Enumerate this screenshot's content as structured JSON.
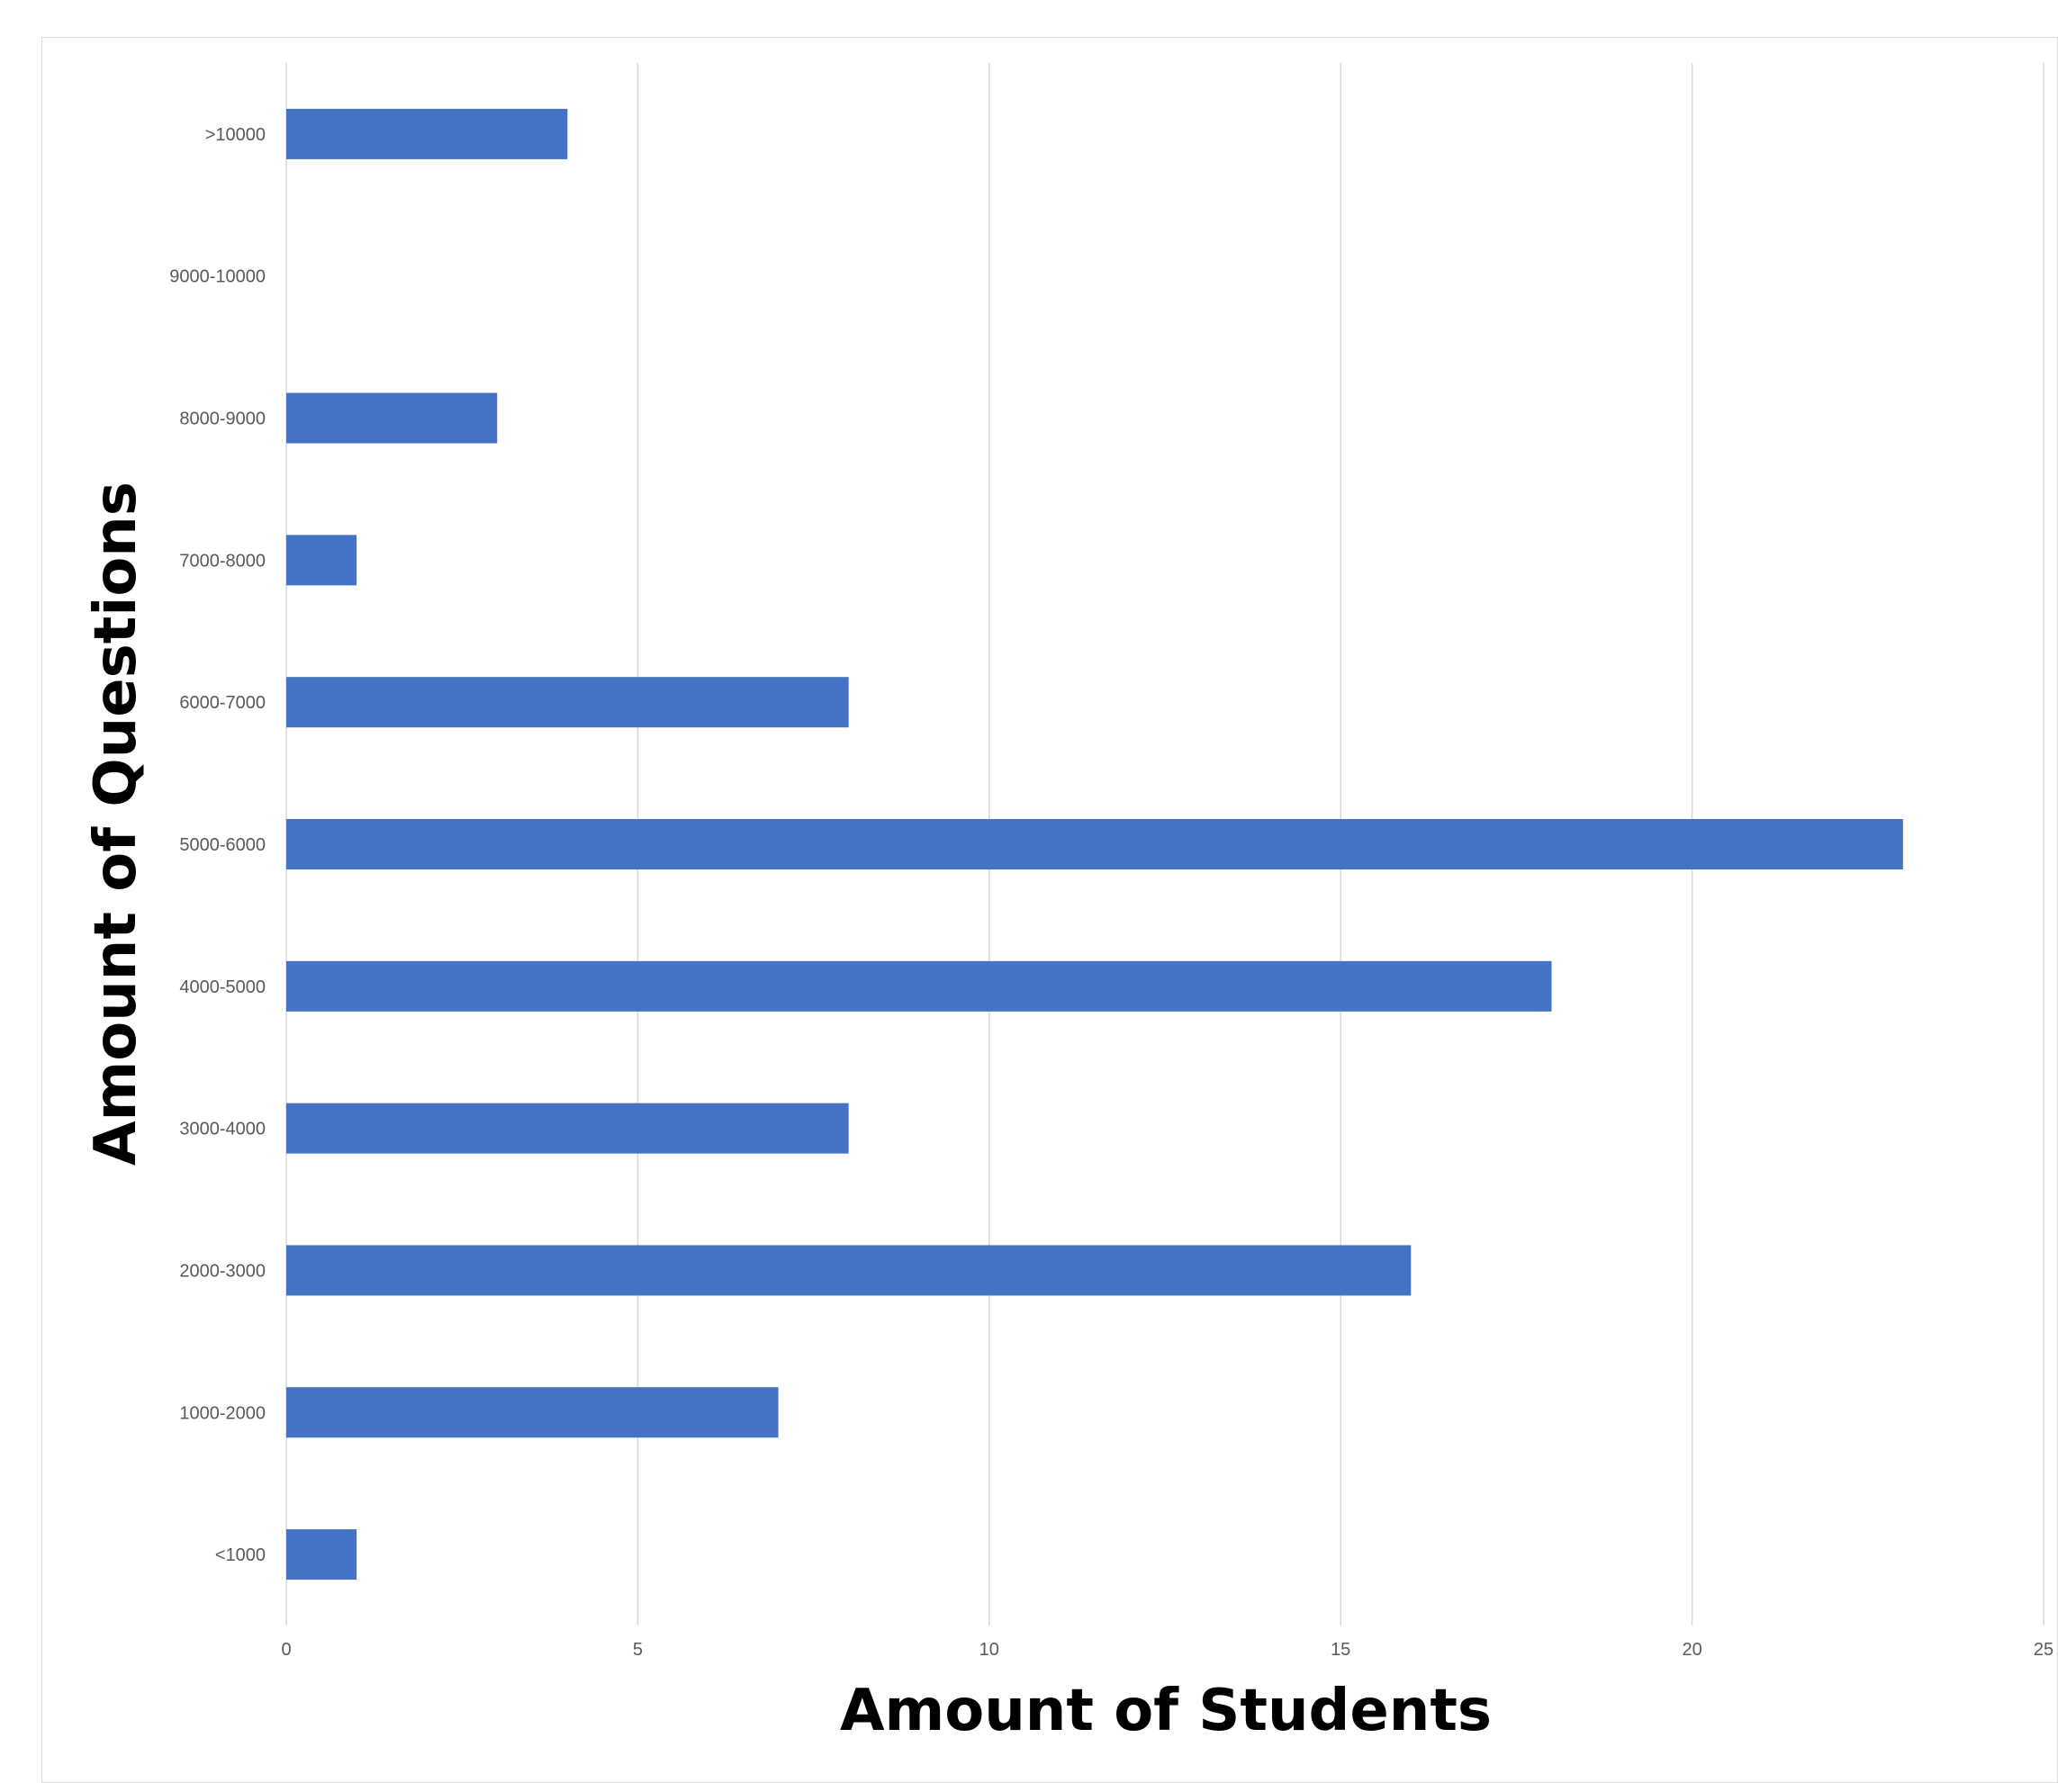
{
  "chart_data": {
    "type": "bar",
    "orientation": "horizontal",
    "categories": [
      ">10000",
      "9000-10000",
      "8000-9000",
      "7000-8000",
      "6000-7000",
      "5000-6000",
      "4000-5000",
      "3000-4000",
      "2000-3000",
      "1000-2000",
      "<1000"
    ],
    "values": [
      4,
      0,
      3,
      1,
      8,
      23,
      18,
      8,
      16,
      7,
      1
    ],
    "xlabel": "Amount of Students",
    "ylabel": "Amount of Questions",
    "xlim": [
      0,
      25
    ],
    "x_ticks": [
      "0",
      "5",
      "10",
      "15",
      "20",
      "25"
    ],
    "grid": "vertical",
    "bar_color": "#4472C4",
    "gridline_color": "#d9d9d9"
  }
}
